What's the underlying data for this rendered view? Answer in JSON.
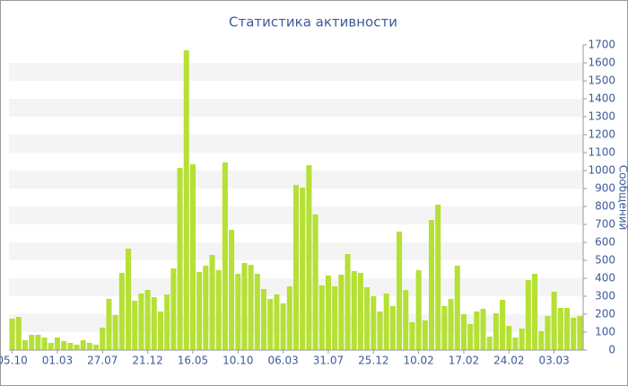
{
  "chart_data": {
    "type": "bar",
    "title": "Статистика активности",
    "y_label": "Сообщений",
    "categories": [
      "05.10",
      null,
      null,
      null,
      null,
      null,
      null,
      "01.03",
      null,
      null,
      null,
      null,
      null,
      null,
      "27.07",
      null,
      null,
      null,
      null,
      null,
      null,
      "21.12",
      null,
      null,
      null,
      null,
      null,
      null,
      "16.05",
      null,
      null,
      null,
      null,
      null,
      null,
      "10.10",
      null,
      null,
      null,
      null,
      null,
      null,
      "06.03",
      null,
      null,
      null,
      null,
      null,
      null,
      "31.07",
      null,
      null,
      null,
      null,
      null,
      null,
      "25.12",
      null,
      null,
      null,
      null,
      null,
      null,
      "10.02",
      null,
      null,
      null,
      null,
      null,
      null,
      "17.02",
      null,
      null,
      null,
      null,
      null,
      null,
      "24.02",
      null,
      null,
      null,
      null,
      null,
      null,
      "03.03",
      null,
      null,
      null,
      null
    ],
    "values": [
      175,
      185,
      55,
      85,
      85,
      70,
      40,
      70,
      50,
      40,
      30,
      55,
      40,
      30,
      125,
      285,
      195,
      430,
      565,
      275,
      315,
      335,
      295,
      215,
      310,
      455,
      1015,
      1670,
      1035,
      435,
      470,
      530,
      445,
      1045,
      670,
      425,
      485,
      475,
      425,
      340,
      285,
      310,
      260,
      355,
      920,
      905,
      1030,
      755,
      360,
      415,
      355,
      420,
      535,
      440,
      430,
      350,
      300,
      215,
      315,
      245,
      660,
      335,
      155,
      445,
      165,
      725,
      810,
      245,
      285,
      470,
      200,
      145,
      215,
      230,
      75,
      205,
      280,
      135,
      70,
      120,
      390,
      425,
      105,
      190,
      325,
      235,
      235,
      180,
      190
    ],
    "color": "#b5e035",
    "ylim": [
      0,
      1700
    ],
    "yticks": [
      0,
      100,
      200,
      300,
      400,
      500,
      600,
      700,
      800,
      900,
      1000,
      1100,
      1200,
      1300,
      1400,
      1500,
      1600,
      1700
    ],
    "grid": true
  }
}
